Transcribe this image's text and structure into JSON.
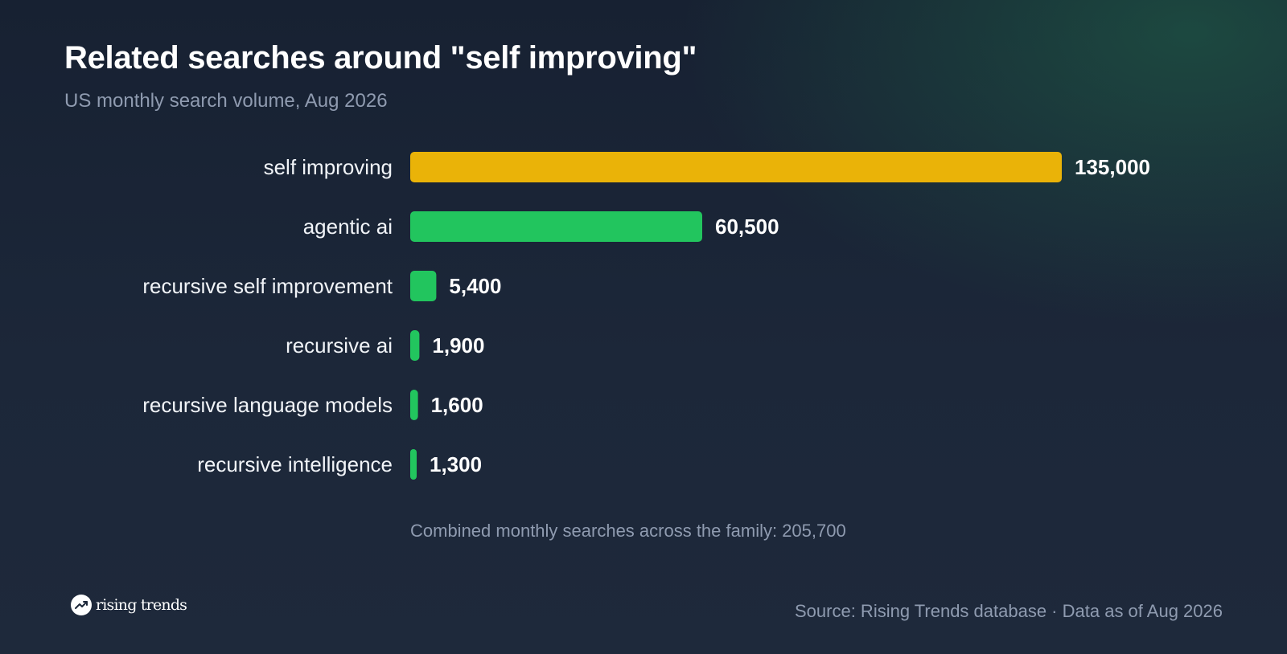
{
  "header": {
    "title": "Related searches around \"self improving\"",
    "subtitle": "US monthly search volume, Aug 2026"
  },
  "chart_data": {
    "type": "bar",
    "orientation": "horizontal",
    "categories": [
      "self improving",
      "agentic ai",
      "recursive self improvement",
      "recursive ai",
      "recursive language models",
      "recursive intelligence"
    ],
    "values": [
      135000,
      60500,
      5400,
      1900,
      1600,
      1300
    ],
    "value_labels": [
      "135,000",
      "60,500",
      "5,400",
      "1,900",
      "1,600",
      "1,300"
    ],
    "title": "Related searches around \"self improving\"",
    "subtitle": "US monthly search volume, Aug 2026",
    "xlabel": "",
    "ylabel": "",
    "grid": false,
    "colors": {
      "highlight": "#eab308",
      "default": "#22c55e"
    }
  },
  "summary": {
    "total_text": "Combined monthly searches across the family: 205,700"
  },
  "footer": {
    "logo_text": "rising trends",
    "source": "Source: Rising Trends database · Data as of Aug 2026"
  }
}
